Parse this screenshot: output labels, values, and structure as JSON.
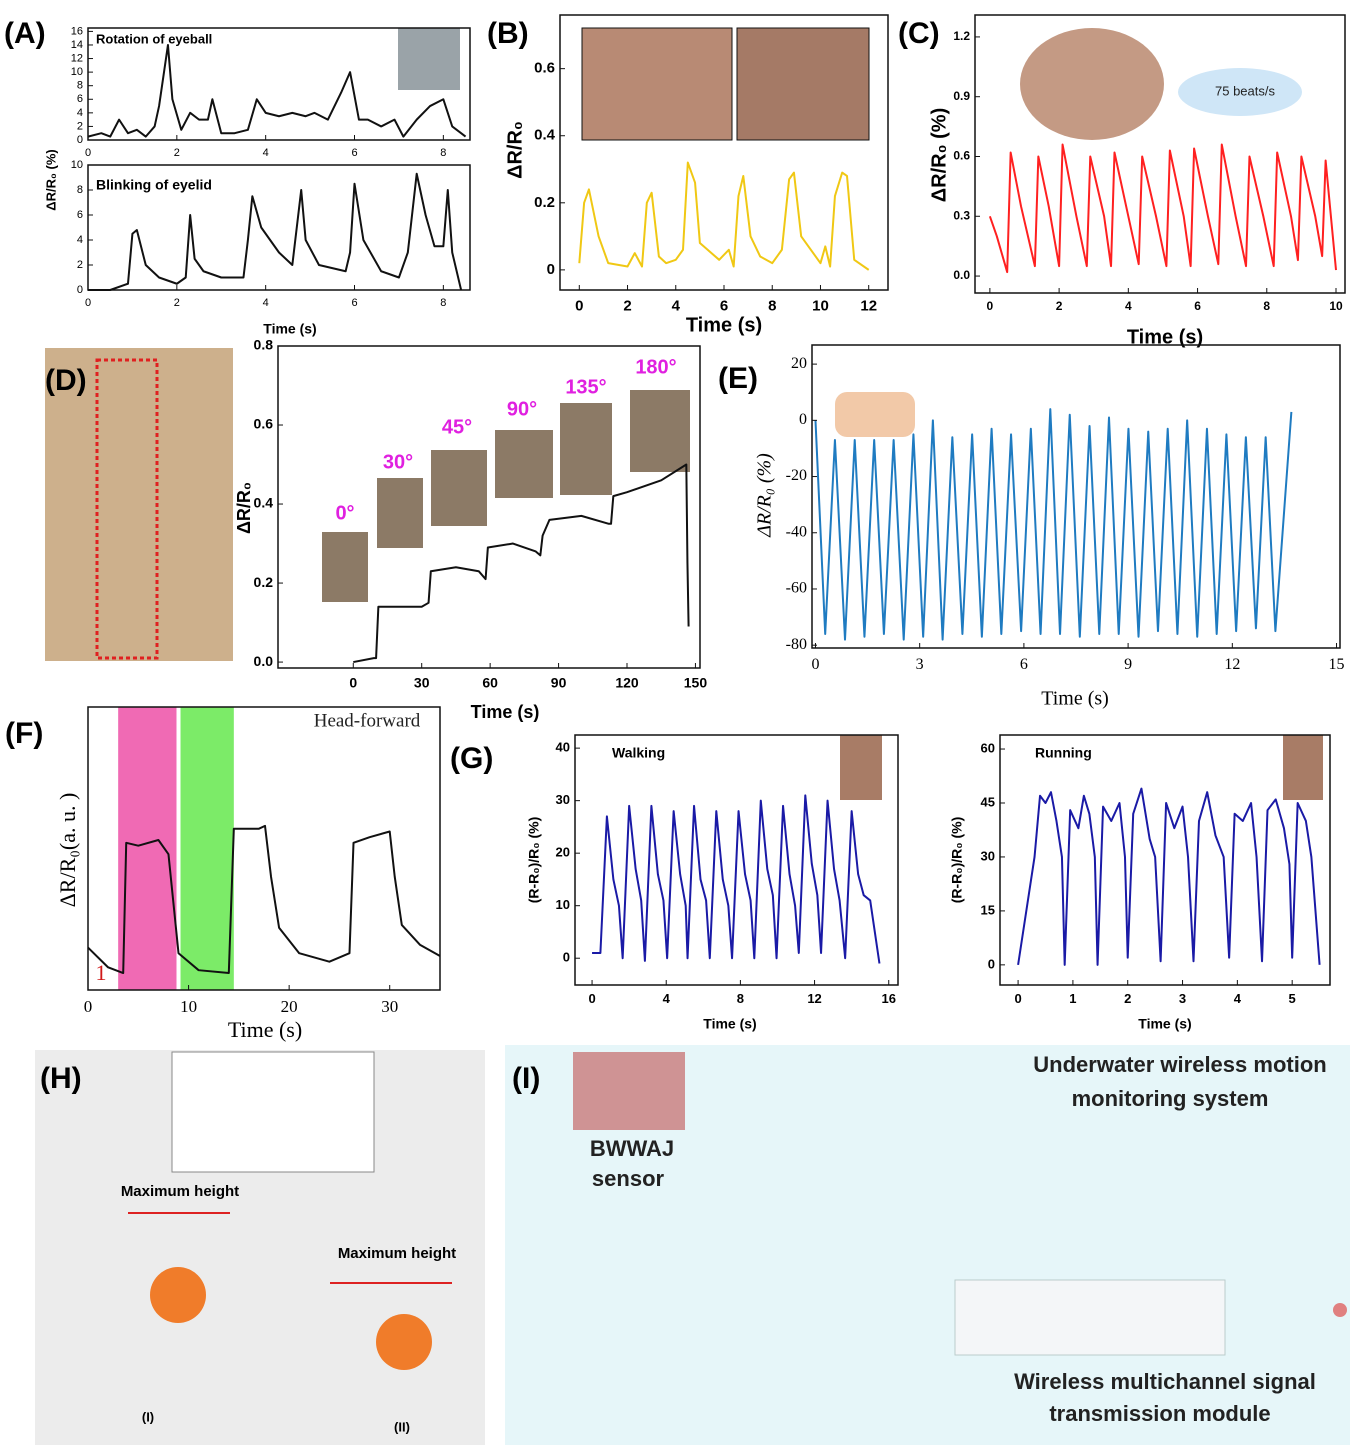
{
  "chart_data": [
    {
      "type": "line",
      "panel": "(A)",
      "title": "Rotation of eyeball",
      "ylabel": "ΔR/R₀ (%)",
      "xlim": [
        0,
        8.6
      ],
      "ylim": [
        0,
        16.5
      ],
      "xticks": [
        0,
        2,
        4,
        6,
        8
      ],
      "yticks": [
        0,
        2,
        4,
        6,
        8,
        10,
        12,
        14,
        16
      ],
      "x": [
        0,
        0.3,
        0.5,
        0.7,
        0.9,
        1.1,
        1.3,
        1.5,
        1.6,
        1.8,
        1.9,
        2.1,
        2.3,
        2.5,
        2.7,
        2.8,
        3.0,
        3.3,
        3.6,
        3.8,
        4.0,
        4.3,
        4.6,
        4.9,
        5.1,
        5.4,
        5.7,
        5.9,
        6.1,
        6.3,
        6.6,
        6.9,
        7.1,
        7.4,
        7.7,
        8.0,
        8.2,
        8.5
      ],
      "series": [
        {
          "color": "#111111",
          "values": [
            0.5,
            1,
            0.5,
            3,
            1,
            1.5,
            0.5,
            2,
            5,
            14,
            6,
            1.5,
            4,
            3,
            3,
            6,
            1,
            1,
            1.5,
            6,
            4,
            3.5,
            4,
            3.5,
            4,
            3,
            7,
            10,
            3,
            3,
            2,
            3,
            0.5,
            3,
            5,
            6,
            2,
            0.5
          ]
        }
      ]
    },
    {
      "type": "line",
      "title": "Blinking of eyelid",
      "xlabel": "Time (s)",
      "xlim": [
        0,
        8.6
      ],
      "ylim": [
        0,
        10
      ],
      "xticks": [
        0,
        2,
        4,
        6,
        8
      ],
      "yticks": [
        0,
        2,
        4,
        6,
        8,
        10
      ],
      "x": [
        0,
        0.5,
        0.9,
        1.0,
        1.1,
        1.3,
        1.6,
        2.0,
        2.2,
        2.3,
        2.4,
        2.6,
        3.0,
        3.5,
        3.6,
        3.7,
        3.9,
        4.3,
        4.6,
        4.8,
        4.9,
        5.2,
        5.8,
        5.9,
        6.0,
        6.2,
        6.6,
        7.0,
        7.2,
        7.4,
        7.6,
        7.8,
        8.0,
        8.1,
        8.2,
        8.4
      ],
      "series": [
        {
          "color": "#111111",
          "values": [
            0,
            0,
            0.5,
            4.5,
            4.8,
            2,
            1,
            0.5,
            1,
            6,
            2.5,
            1.5,
            1,
            1,
            4,
            7.5,
            5,
            3,
            2,
            8,
            4,
            2,
            1.5,
            3,
            8.5,
            4,
            1.5,
            1,
            3,
            9.3,
            6,
            3.5,
            3.5,
            8,
            3,
            0
          ]
        }
      ]
    },
    {
      "type": "line",
      "panel": "(B)",
      "ylabel": "ΔR/R₀",
      "xlabel": "Time (s)",
      "xlim": [
        -0.8,
        12.8
      ],
      "ylim": [
        -0.06,
        0.76
      ],
      "xticks": [
        0,
        2,
        4,
        6,
        8,
        10,
        12
      ],
      "yticks": [
        0,
        0.2,
        0.4,
        0.6
      ],
      "x": [
        0,
        0.2,
        0.4,
        0.8,
        1.2,
        2.0,
        2.3,
        2.6,
        2.8,
        3.0,
        3.3,
        3.6,
        4.0,
        4.3,
        4.5,
        4.8,
        5.0,
        5.8,
        6.2,
        6.4,
        6.6,
        6.8,
        7.1,
        7.5,
        8.0,
        8.4,
        8.7,
        8.9,
        9.2,
        10.0,
        10.2,
        10.4,
        10.6,
        10.9,
        11.1,
        11.4,
        12
      ],
      "series": [
        {
          "color": "#f0c814",
          "values": [
            0.02,
            0.2,
            0.24,
            0.1,
            0.02,
            0.01,
            0.05,
            0.01,
            0.2,
            0.23,
            0.04,
            0.02,
            0.03,
            0.06,
            0.32,
            0.26,
            0.08,
            0.03,
            0.06,
            0.01,
            0.22,
            0.28,
            0.1,
            0.04,
            0.02,
            0.06,
            0.27,
            0.29,
            0.1,
            0.02,
            0.07,
            0.01,
            0.22,
            0.29,
            0.28,
            0.03,
            0
          ]
        }
      ]
    },
    {
      "type": "line",
      "panel": "(C)",
      "ylabel": "ΔR/R₀ (%)",
      "xlabel": "Time (s)",
      "annotations": [
        "75 beats/s"
      ],
      "xlim": [
        -0.43,
        10.26
      ],
      "ylim": [
        -0.085,
        1.31
      ],
      "xticks": [
        0,
        2,
        4,
        6,
        8,
        10
      ],
      "yticks": [
        {
          "value": 0,
          "label": "0.0"
        },
        0.3,
        0.6,
        0.9,
        1.2
      ],
      "x": [
        0,
        0.2,
        0.5,
        0.6,
        0.9,
        1.3,
        1.4,
        1.7,
        2.0,
        2.1,
        2.5,
        2.8,
        2.9,
        3.3,
        3.5,
        3.6,
        4.0,
        4.3,
        4.4,
        4.8,
        5.1,
        5.2,
        5.6,
        5.8,
        5.9,
        6.3,
        6.6,
        6.7,
        7.1,
        7.4,
        7.5,
        7.9,
        8.2,
        8.3,
        8.7,
        8.9,
        9.0,
        9.4,
        9.6,
        9.7,
        10
      ],
      "series": [
        {
          "color": "#ff2020",
          "values": [
            0.3,
            0.2,
            0.02,
            0.62,
            0.35,
            0.05,
            0.6,
            0.35,
            0.05,
            0.66,
            0.3,
            0.05,
            0.6,
            0.3,
            0.05,
            0.62,
            0.3,
            0.06,
            0.6,
            0.3,
            0.05,
            0.63,
            0.3,
            0.05,
            0.64,
            0.3,
            0.06,
            0.66,
            0.3,
            0.05,
            0.6,
            0.3,
            0.05,
            0.62,
            0.3,
            0.08,
            0.6,
            0.3,
            0.1,
            0.58,
            0.03
          ]
        }
      ]
    },
    {
      "type": "line",
      "panel": "(D)",
      "ylabel": "ΔR/R₀",
      "xlabel": "Time (s)",
      "annotations": [
        "0°",
        "30°",
        "45°",
        "90°",
        "135°",
        "180°"
      ],
      "xlim": [
        -33,
        152
      ],
      "ylim": [
        -0.015,
        0.8
      ],
      "xticks": [
        0,
        30,
        60,
        90,
        120,
        150
      ],
      "yticks": [
        {
          "value": 0,
          "label": "0.0"
        },
        0.2,
        0.4,
        0.6,
        0.8
      ],
      "x": [
        0,
        9,
        10,
        11,
        30,
        33,
        34,
        45,
        55,
        58,
        59,
        70,
        80,
        82,
        83,
        86,
        100,
        112,
        113,
        114,
        120,
        135,
        146,
        146.5,
        147
      ],
      "series": [
        {
          "color": "#111111",
          "values": [
            0,
            0.01,
            0.01,
            0.14,
            0.14,
            0.15,
            0.23,
            0.24,
            0.23,
            0.21,
            0.29,
            0.3,
            0.28,
            0.27,
            0.32,
            0.36,
            0.37,
            0.35,
            0.35,
            0.42,
            0.43,
            0.46,
            0.5,
            0.25,
            0.09
          ]
        }
      ]
    },
    {
      "type": "line",
      "panel": "(E)",
      "ylabel": "ΔR/R₀ (%)",
      "xlabel": "Time (s)",
      "xlim": [
        -0.1,
        15.1
      ],
      "ylim": [
        -81,
        26.8
      ],
      "xticks": [
        0,
        3,
        6,
        9,
        12,
        15
      ],
      "yticks": [
        -80,
        -60,
        -40,
        -20,
        0,
        20
      ],
      "x": [
        0,
        0.28,
        0.56,
        0.85,
        1.13,
        1.41,
        1.69,
        1.97,
        2.25,
        2.54,
        2.82,
        3.1,
        3.38,
        3.66,
        3.94,
        4.23,
        4.51,
        4.79,
        5.07,
        5.35,
        5.63,
        5.92,
        6.2,
        6.48,
        6.76,
        7.04,
        7.32,
        7.61,
        7.89,
        8.17,
        8.45,
        8.73,
        9.01,
        9.3,
        9.58,
        9.86,
        10.14,
        10.42,
        10.7,
        10.99,
        11.27,
        11.55,
        11.83,
        12.11,
        12.39,
        12.68,
        12.96,
        13.24,
        13.7
      ],
      "series": [
        {
          "color": "#1f7bc1",
          "values": [
            0,
            -76,
            -7,
            -78,
            -7,
            -77,
            -7,
            -76,
            -7,
            -78,
            -5,
            -77,
            0,
            -78,
            -6,
            -76,
            -5,
            -77,
            -3,
            -76,
            -5,
            -75,
            -3,
            -76,
            4,
            -76,
            2,
            -77,
            -2,
            -76,
            1,
            -76,
            -3,
            -77,
            -4,
            -75,
            -3,
            -76,
            0,
            -77,
            -3,
            -76,
            -5,
            -75,
            -6,
            -74,
            -6,
            -75,
            3
          ]
        }
      ]
    },
    {
      "type": "line",
      "panel": "(F)",
      "ylabel": "ΔR/R₀(a. u. )",
      "xlabel": "Time  (s)",
      "annotations": [
        "Head-forward",
        "1"
      ],
      "xlim": [
        0,
        35
      ],
      "ylim": [
        0,
        10
      ],
      "xticks": [
        0,
        10,
        20,
        30
      ],
      "spans": [
        {
          "x0": 3,
          "x1": 8.8,
          "color": "#f06ab4"
        },
        {
          "x0": 9.2,
          "x1": 14.5,
          "color": "#7ceb68"
        }
      ],
      "x": [
        0,
        2,
        3.5,
        3.8,
        5,
        7,
        8,
        9,
        11,
        14,
        14.5,
        17,
        17.6,
        18.2,
        19,
        21,
        24,
        26,
        26.4,
        28,
        30,
        30.5,
        31.2,
        33,
        35
      ],
      "series": [
        {
          "color": "#111111",
          "values": [
            1.5,
            0.8,
            0.6,
            5.2,
            5.1,
            5.3,
            4.8,
            1.3,
            0.7,
            0.6,
            5.7,
            5.7,
            5.8,
            4,
            2.2,
            1.3,
            1,
            1.3,
            5.2,
            5.4,
            5.6,
            4,
            2.3,
            1.6,
            1.2
          ]
        }
      ]
    },
    {
      "type": "line",
      "panel": "(G)",
      "title": "Walking",
      "ylabel": "(R-R₀)/R₀ (%)",
      "xlabel": "Time (s)",
      "xlim": [
        -0.92,
        16.5
      ],
      "ylim": [
        -5.1,
        42.5
      ],
      "xticks": [
        0,
        4,
        8,
        12,
        16
      ],
      "yticks": [
        0,
        10,
        20,
        30,
        40
      ],
      "x": [
        0,
        0.45,
        0.8,
        1.15,
        1.45,
        1.65,
        2.0,
        2.35,
        2.65,
        2.85,
        3.2,
        3.55,
        3.85,
        4.05,
        4.4,
        4.75,
        5.05,
        5.15,
        5.5,
        5.85,
        6.15,
        6.35,
        6.7,
        7.05,
        7.35,
        7.55,
        7.9,
        8.25,
        8.55,
        8.75,
        9.1,
        9.45,
        9.75,
        9.95,
        10.3,
        10.65,
        10.95,
        11.15,
        11.5,
        11.85,
        12.15,
        12.35,
        12.7,
        13.05,
        13.35,
        13.65,
        14.0,
        14.35,
        14.65,
        15.0,
        15.5
      ],
      "series": [
        {
          "color": "#1a1aa6",
          "values": [
            1,
            1,
            27,
            15,
            10,
            0,
            29,
            17,
            11,
            -0.5,
            29,
            16,
            11,
            0,
            28,
            16,
            10,
            0,
            29,
            15,
            11,
            0,
            28,
            15,
            10,
            0,
            28,
            16,
            11,
            0,
            30,
            17,
            12,
            0,
            29,
            16,
            10,
            1,
            31,
            18,
            12,
            1,
            30,
            17,
            11,
            0,
            28,
            16,
            12,
            11,
            -1
          ]
        }
      ]
    },
    {
      "type": "line",
      "title": "Running",
      "ylabel": "(R-R₀)/R₀ (%)",
      "xlabel": "Time (s)",
      "xlim": [
        -0.33,
        5.69
      ],
      "ylim": [
        -5.6,
        63.9
      ],
      "xticks": [
        0,
        1,
        2,
        3,
        4,
        5
      ],
      "yticks": [
        0,
        15,
        30,
        45,
        60
      ],
      "x": [
        0,
        0.3,
        0.4,
        0.5,
        0.6,
        0.7,
        0.8,
        0.85,
        0.95,
        1.1,
        1.2,
        1.3,
        1.4,
        1.45,
        1.55,
        1.7,
        1.85,
        1.95,
        2.0,
        2.1,
        2.25,
        2.4,
        2.5,
        2.6,
        2.7,
        2.85,
        3.0,
        3.1,
        3.2,
        3.3,
        3.45,
        3.6,
        3.75,
        3.85,
        3.95,
        4.1,
        4.25,
        4.35,
        4.45,
        4.55,
        4.7,
        4.85,
        4.95,
        5.0,
        5.1,
        5.25,
        5.35,
        5.5
      ],
      "series": [
        {
          "color": "#1a1aa6",
          "values": [
            0,
            30,
            47,
            45,
            48,
            40,
            30,
            0,
            43,
            38,
            47,
            42,
            30,
            0,
            44,
            40,
            45,
            30,
            2,
            42,
            49,
            35,
            30,
            1,
            45,
            38,
            44,
            30,
            1,
            40,
            48,
            36,
            30,
            2,
            42,
            40,
            45,
            30,
            1,
            43,
            46,
            38,
            28,
            2,
            45,
            40,
            30,
            0
          ]
        }
      ]
    }
  ],
  "illustrations": [
    {
      "panel": "(H)",
      "texts": [
        "Maximum height",
        "Maximum height",
        "(I)",
        "(II)"
      ]
    },
    {
      "panel": "(I)",
      "texts": [
        "BWWAJ",
        "sensor",
        "Underwater wireless motion",
        "monitoring system",
        "Wireless multichannel signal",
        "transmission module"
      ]
    }
  ]
}
